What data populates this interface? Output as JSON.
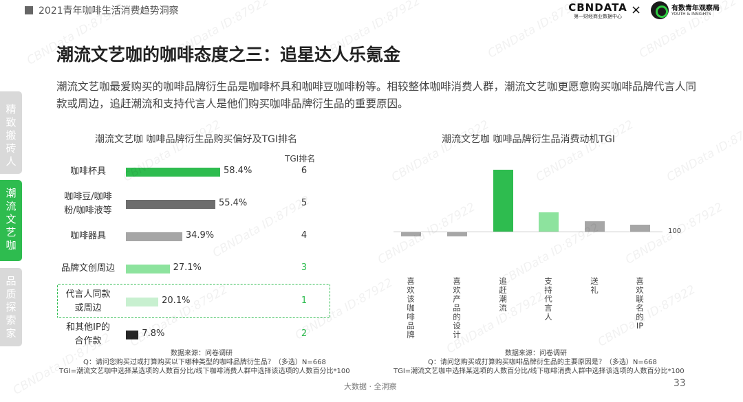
{
  "header": {
    "title": "2021青年咖啡生活消费趋势洞察",
    "logo_cbn": "CBNDATA",
    "logo_cbn_sub": "第一财经商业数据中心",
    "logo_sep": "×",
    "logo_yh": "有数青年观察局",
    "logo_yh_en": "YOUTH & INSIGHTS"
  },
  "sidebar": [
    {
      "label": "精致搬砖人",
      "active": false
    },
    {
      "label": "潮流文艺咖",
      "active": true
    },
    {
      "label": "品质探索家",
      "active": false
    }
  ],
  "page_title": "潮流文艺咖的咖啡态度之三：追星达人乐氪金",
  "summary": "潮流文艺咖最爱购买的咖啡品牌衍生品是咖啡杯具和咖啡豆咖啡粉等。相较整体咖啡消费人群，潮流文艺咖更愿意购买咖啡品牌代言人同款或周边，追赶潮流和支持代言人是他们购买咖啡品牌衍生品的重要原因。",
  "left_chart": {
    "source": "数据来源：问卷调研",
    "question": "Q：请问您购买过或打算购买以下哪种类型的咖啡品牌衍生品？（多选）N=668",
    "note": "TGI=潮流文艺咖中选择某选项的人数百分比/线下咖啡消费人群中选择该选项的人数百分比*100"
  },
  "right_chart": {
    "source": "数据来源：问卷调研",
    "question": "Q：请问您购买或打算购买咖啡品牌衍生品的主要原因是？（多选）N=668",
    "note": "TGI=潮流文艺咖中选择某选项的人数百分比/线下咖啡消费人群中选择该选项的人数百分比*100"
  },
  "chart_data": [
    {
      "type": "bar",
      "orientation": "horizontal",
      "title": "潮流文艺咖 咖啡品牌衍生品购买偏好及TGI排名",
      "rank_header": "TGI排名",
      "categories": [
        "咖啡杯具",
        "咖啡豆/咖啡粉/咖啡液等",
        "咖啡器具",
        "品牌文创周边",
        "代言人同款或周边",
        "和其他IP的合作款"
      ],
      "label_lines": [
        [
          "咖啡杯具"
        ],
        [
          "咖啡豆/咖啡",
          "粉/咖啡液等"
        ],
        [
          "咖啡器具"
        ],
        [
          "品牌文创周边"
        ],
        [
          "代言人同款",
          "或周边"
        ],
        [
          "和其他IP的",
          "合作款"
        ]
      ],
      "values": [
        58.4,
        55.4,
        34.9,
        27.1,
        20.1,
        7.8
      ],
      "value_labels": [
        "58.4%",
        "55.4%",
        "34.9%",
        "27.1%",
        "20.1%",
        "7.8%"
      ],
      "tgi_rank": [
        "6",
        "5",
        "4",
        "3",
        "1",
        "2"
      ],
      "highlighted_category": "代言人同款或周边",
      "colors": [
        "#2ebc4f",
        "#6d6d6d",
        "#a6a6a6",
        "#8de39e",
        "#c8f0d0",
        "#262626"
      ],
      "rank_colors": [
        "#333333",
        "#333333",
        "#333333",
        "#2ebc4f",
        "#2ebc4f",
        "#2ebc4f"
      ],
      "xlim": [
        0,
        60
      ]
    },
    {
      "type": "bar",
      "orientation": "vertical",
      "title": "潮流文艺咖 咖啡品牌衍生品消费动机TGI",
      "categories": [
        "喜欢该咖啡品牌",
        "喜欢产品的设计",
        "追赶潮流",
        "支持代言人",
        "送礼",
        "喜欢联名的IP"
      ],
      "baseline": 100,
      "baseline_label": "100",
      "values": [
        94,
        94,
        190,
        128,
        115,
        110
      ],
      "colors": [
        "#a6a6a6",
        "#a6a6a6",
        "#2ebc4f",
        "#8de39e",
        "#a6a6a6",
        "#a6a6a6"
      ],
      "ylim": [
        90,
        195
      ]
    }
  ],
  "footer": {
    "center": "大数据 · 全洞察",
    "page": "33"
  },
  "watermark": "CBNData ID:87922"
}
